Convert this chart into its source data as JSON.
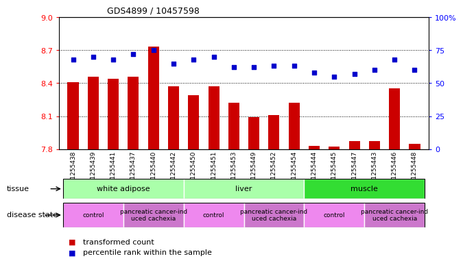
{
  "title": "GDS4899 / 10457598",
  "samples": [
    "GSM1255438",
    "GSM1255439",
    "GSM1255441",
    "GSM1255437",
    "GSM1255440",
    "GSM1255442",
    "GSM1255450",
    "GSM1255451",
    "GSM1255453",
    "GSM1255449",
    "GSM1255452",
    "GSM1255454",
    "GSM1255444",
    "GSM1255445",
    "GSM1255447",
    "GSM1255443",
    "GSM1255446",
    "GSM1255448"
  ],
  "bar_values": [
    8.41,
    8.46,
    8.44,
    8.46,
    8.73,
    8.37,
    8.29,
    8.37,
    8.22,
    8.09,
    8.11,
    8.22,
    7.83,
    7.82,
    7.87,
    7.87,
    8.35,
    7.85
  ],
  "dot_values": [
    68,
    70,
    68,
    72,
    75,
    65,
    68,
    70,
    62,
    62,
    63,
    63,
    58,
    55,
    57,
    60,
    68,
    60
  ],
  "ylim_left": [
    7.8,
    9.0
  ],
  "ylim_right": [
    0,
    100
  ],
  "yticks_left": [
    7.8,
    8.1,
    8.4,
    8.7,
    9.0
  ],
  "yticks_right": [
    0,
    25,
    50,
    75,
    100
  ],
  "bar_color": "#cc0000",
  "dot_color": "#0000cc",
  "tissue_groups": [
    {
      "label": "white adipose",
      "start": 0,
      "end": 6,
      "color": "#aaffaa"
    },
    {
      "label": "liver",
      "start": 6,
      "end": 12,
      "color": "#aaffaa"
    },
    {
      "label": "muscle",
      "start": 12,
      "end": 18,
      "color": "#33dd33"
    }
  ],
  "disease_groups": [
    {
      "label": "control",
      "start": 0,
      "end": 3,
      "color": "#ee88ee"
    },
    {
      "label": "pancreatic cancer-ind\nuced cachexia",
      "start": 3,
      "end": 6,
      "color": "#cc77cc"
    },
    {
      "label": "control",
      "start": 6,
      "end": 9,
      "color": "#ee88ee"
    },
    {
      "label": "pancreatic cancer-ind\nuced cachexia",
      "start": 9,
      "end": 12,
      "color": "#cc77cc"
    },
    {
      "label": "control",
      "start": 12,
      "end": 15,
      "color": "#ee88ee"
    },
    {
      "label": "pancreatic cancer-ind\nuced cachexia",
      "start": 15,
      "end": 18,
      "color": "#cc77cc"
    }
  ],
  "legend_items": [
    {
      "label": "transformed count",
      "color": "#cc0000"
    },
    {
      "label": "percentile rank within the sample",
      "color": "#0000cc"
    }
  ]
}
